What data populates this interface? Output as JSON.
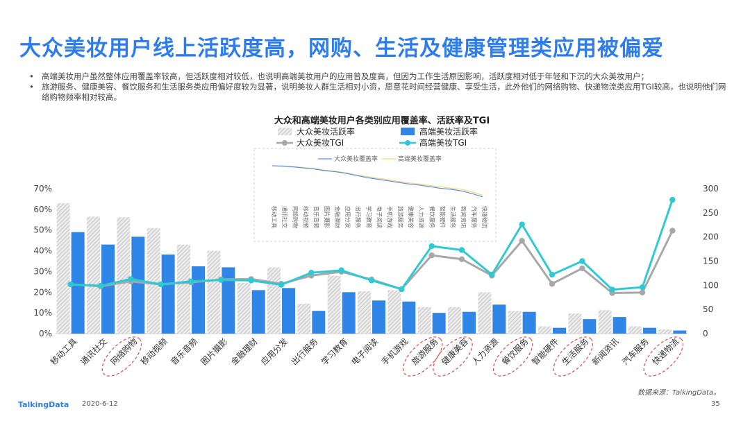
{
  "page": {
    "title": "大众美妆用户线上活跃度高，网购、生活及健康管理类应用被偏爱",
    "bullets": [
      "高端美妆用户虽然整体应用覆盖率较高，但活跃度相对较低，也说明高端美妆用户的应用普及度高，但因为工作生活原因影响，活跃度相对低于年轻和下沉的大众美妆用户；",
      "旅游服务、健康美容、餐饮服务和生活服务类应用偏好度较为显著，说明美妆人群生活相对小资，愿意花时间经营健康、享受生活，此外他们的网络购物、快递物流类应用TGI较高，也说明他们网络购物频率相对较高。"
    ],
    "bullet_marker": "•",
    "source": "数据来源：TalkingData。",
    "brand": "TalkingData",
    "date": "2020-6-12",
    "page_number": "35"
  },
  "chart_data": {
    "type": "bar",
    "title": "大众和高端美妆用户各类别应用覆盖率、活跃率及TGI",
    "categories": [
      "移动工具",
      "通讯社交",
      "网络购物",
      "移动视频",
      "音乐音频",
      "图片摄影",
      "金融理财",
      "应用分发",
      "出行服务",
      "学习教育",
      "电子阅读",
      "手机游戏",
      "旅游服务",
      "健康美容",
      "人力资源",
      "餐饮服务",
      "智能硬件",
      "生活服务",
      "新闻资讯",
      "汽车服务",
      "快递物流"
    ],
    "circled_categories": [
      "网络购物",
      "旅游服务",
      "健康美容",
      "餐饮服务",
      "生活服务",
      "快递物流"
    ],
    "series": [
      {
        "name": "大众美妆活跃率",
        "kind": "bar",
        "axis": "left",
        "color": "#d0d0d0",
        "values": [
          63,
          56.5,
          56.2,
          51,
          43,
          40,
          24.5,
          32,
          14.5,
          28,
          20.5,
          21,
          12.8,
          12.8,
          20,
          11,
          3.5,
          9.8,
          11.3,
          3.5,
          2
        ]
      },
      {
        "name": "高端美妆活跃率",
        "kind": "bar",
        "axis": "left",
        "color": "#2f86e6",
        "values": [
          49,
          43,
          46.8,
          38.2,
          32.5,
          32,
          21,
          22,
          11,
          20,
          16,
          15.5,
          10,
          10.5,
          14,
          10.5,
          2.8,
          7,
          8,
          2.8,
          1.5
        ]
      },
      {
        "name": "大众美妆TGI",
        "kind": "line",
        "axis": "right",
        "color": "#a8a8a8",
        "values": [
          102,
          98,
          108,
          102,
          106,
          112,
          113,
          103,
          120,
          128,
          112,
          92,
          162,
          154,
          120,
          192,
          103,
          135,
          84,
          85,
          213
        ]
      },
      {
        "name": "高端美妆TGI",
        "kind": "line",
        "axis": "right",
        "color": "#2ec9d3",
        "values": [
          102,
          99,
          113,
          102,
          108,
          111,
          110,
          101,
          126,
          131,
          110,
          92,
          181,
          173,
          122,
          226,
          122,
          150,
          91,
          96,
          277
        ]
      }
    ],
    "y_left": {
      "min": 0,
      "max": 70,
      "step": 10,
      "ticks": [
        "0%",
        "10%",
        "20%",
        "30%",
        "40%",
        "50%",
        "60%",
        "70%"
      ]
    },
    "y_right": {
      "min": 0,
      "max": 300,
      "step": 50,
      "ticks": [
        "0",
        "50",
        "100",
        "150",
        "200",
        "250",
        "300"
      ]
    },
    "inset": {
      "legend": [
        "大众美妆覆盖率",
        "高端美妆覆盖率"
      ],
      "colors": [
        "#5b8de0",
        "#f0d878"
      ],
      "series_a": [
        96,
        95.5,
        94,
        92,
        90,
        87,
        85,
        82,
        78,
        74,
        71,
        68,
        65,
        62,
        60,
        57,
        54,
        52,
        49,
        44,
        38
      ],
      "series_b": [
        96.5,
        95.5,
        94.5,
        93,
        91,
        88,
        86,
        83,
        79,
        76,
        73,
        70,
        67,
        64,
        62,
        59,
        57,
        54,
        52,
        47,
        41
      ],
      "ylim": [
        30,
        100
      ]
    }
  }
}
